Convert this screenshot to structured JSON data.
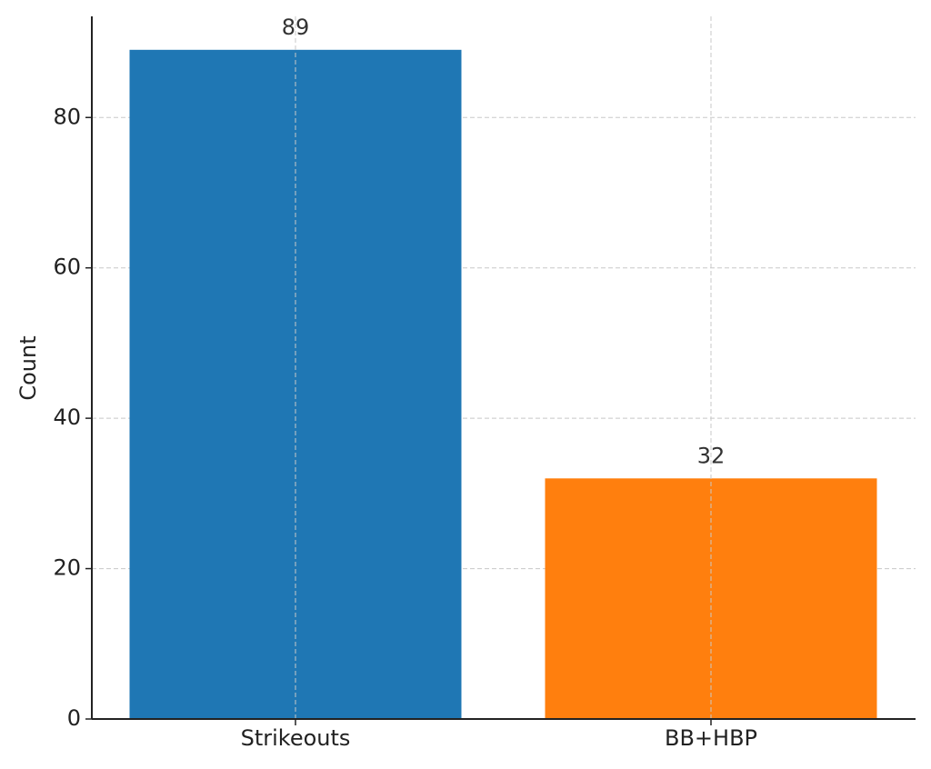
{
  "chart_data": {
    "type": "bar",
    "y_label": "Count",
    "categories": [
      "Strikeouts",
      "BB+HBP"
    ],
    "values": [
      89,
      32
    ],
    "colors": [
      "#1f77b4",
      "#ff7f0e"
    ],
    "ylim": [
      0,
      93.45
    ],
    "yticks": [
      0,
      20,
      40,
      60,
      80
    ],
    "grid": true
  }
}
